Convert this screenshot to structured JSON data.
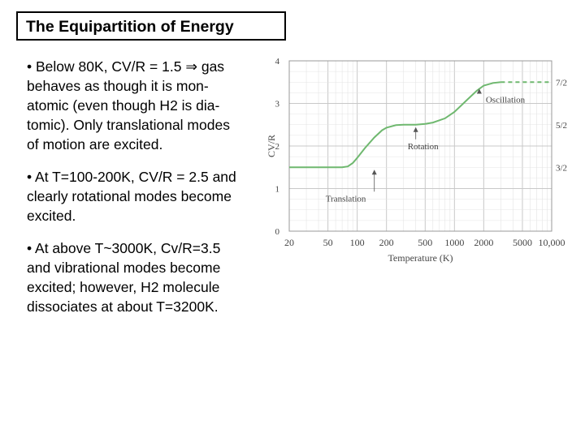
{
  "title": "The Equipartition of Energy",
  "bullets": [
    {
      "lines": [
        "• Below 80K, CV/R = 1.5 ⇒ gas",
        "behaves as though it is mon-",
        "atomic (even though H2 is dia-",
        "tomic). Only translational modes",
        "of motion are excited."
      ]
    },
    {
      "lines": [
        "• At T=100-200K, CV/R = 2.5 and",
        "clearly rotational modes become",
        "excited."
      ]
    },
    {
      "lines": [
        "• At above T~3000K, Cv/R=3.5",
        "and vibrational modes become",
        "excited; however, H2 molecule",
        "dissociates at about T=3200K."
      ]
    }
  ],
  "chart_data": {
    "type": "line",
    "xscale": "log",
    "xlabel": "Temperature (K)",
    "ylabel": "CV/R",
    "x_ticks": [
      20,
      50,
      100,
      200,
      500,
      1000,
      2000,
      5000,
      10000
    ],
    "x_tick_labels": [
      "20",
      "50",
      "100",
      "200",
      "500",
      "1000",
      "2000",
      "5000",
      "10,000"
    ],
    "y_ticks": [
      0,
      1,
      2,
      3,
      4
    ],
    "y_tick_labels": [
      "0",
      "1",
      "2",
      "3",
      "4"
    ],
    "right_tick_labels": [
      {
        "value": 3.5,
        "label": "7/2"
      },
      {
        "value": 2.5,
        "label": "5/2"
      },
      {
        "value": 1.5,
        "label": "3/2"
      }
    ],
    "xlim": [
      20,
      10000
    ],
    "ylim": [
      0,
      4
    ],
    "grid": true,
    "line_color": "#6fb86f",
    "series": [
      {
        "x": [
          20,
          50,
          70,
          80,
          90,
          100,
          120,
          150,
          180,
          200,
          250,
          300,
          400,
          500,
          600,
          800,
          1000,
          1300,
          1700,
          2000,
          2500,
          3000
        ],
        "y": [
          1.5,
          1.5,
          1.5,
          1.52,
          1.6,
          1.72,
          1.95,
          2.2,
          2.37,
          2.43,
          2.49,
          2.5,
          2.5,
          2.52,
          2.55,
          2.65,
          2.8,
          3.05,
          3.3,
          3.42,
          3.48,
          3.5
        ],
        "style": "solid"
      },
      {
        "x": [
          3000,
          5000,
          10000
        ],
        "y": [
          3.5,
          3.5,
          3.5
        ],
        "style": "dashed"
      }
    ],
    "annotations": [
      {
        "text": "Oscillation",
        "x": 1800,
        "y": 3.4
      },
      {
        "text": "Rotation",
        "x": 400,
        "y": 2.5
      },
      {
        "text": "Translation",
        "x": 150,
        "y": 1.5
      }
    ]
  }
}
